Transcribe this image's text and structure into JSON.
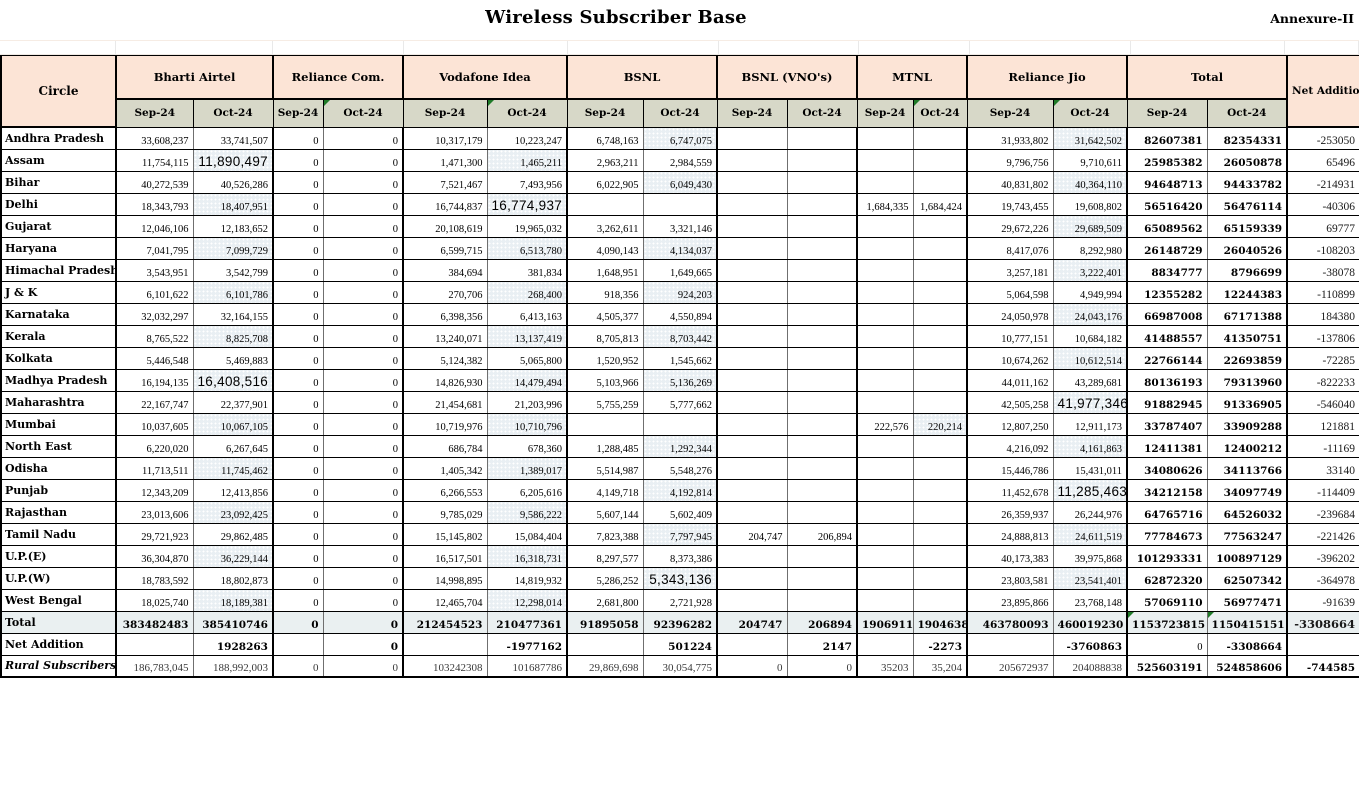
{
  "title": "Wireless Subscriber Base",
  "annexure": "Annexure-II",
  "colors": {
    "header_peach": "#FCE4D6",
    "subheader_beige": "#D7D8C8",
    "total_row_bg": "#EAF0F1",
    "oct_band_bg": "#E9EFF3",
    "comment_marker_green": "#1F7A28"
  },
  "table": {
    "corner_header": "Circle",
    "net_addition_header": "Net Addition",
    "months": [
      "Sep-24",
      "Oct-24"
    ],
    "operators": [
      "Bharti Airtel",
      "Reliance Com.",
      "Vodafone Idea",
      "BSNL",
      "BSNL (VNO's)",
      "MTNL",
      "Reliance Jio",
      "Total"
    ],
    "rows": [
      {
        "circle": "Andhra Pradesh",
        "values": [
          "33,608,237",
          "33,741,507",
          "0",
          "0",
          "10,317,179",
          "10,223,247",
          "6,748,163",
          "6,747,075",
          "",
          "",
          "",
          "",
          "31,933,802",
          "31,642,502",
          "82607381",
          "82354331",
          "-253050"
        ]
      },
      {
        "circle": "Assam",
        "values": [
          "11,754,115",
          "11,890,497",
          "0",
          "0",
          "1,471,300",
          "1,465,211",
          "2,963,211",
          "2,984,559",
          "",
          "",
          "",
          "",
          "9,796,756",
          "9,710,611",
          "25985382",
          "26050878",
          "65496"
        ]
      },
      {
        "circle": "Bihar",
        "values": [
          "40,272,539",
          "40,526,286",
          "0",
          "0",
          "7,521,467",
          "7,493,956",
          "6,022,905",
          "6,049,430",
          "",
          "",
          "",
          "",
          "40,831,802",
          "40,364,110",
          "94648713",
          "94433782",
          "-214931"
        ]
      },
      {
        "circle": "Delhi",
        "values": [
          "18,343,793",
          "18,407,951",
          "0",
          "0",
          "16,744,837",
          "16,774,937",
          "",
          "",
          "",
          "",
          "1,684,335",
          "1,684,424",
          "19,743,455",
          "19,608,802",
          "56516420",
          "56476114",
          "-40306"
        ]
      },
      {
        "circle": "Gujarat",
        "values": [
          "12,046,106",
          "12,183,652",
          "0",
          "0",
          "20,108,619",
          "19,965,032",
          "3,262,611",
          "3,321,146",
          "",
          "",
          "",
          "",
          "29,672,226",
          "29,689,509",
          "65089562",
          "65159339",
          "69777"
        ]
      },
      {
        "circle": "Haryana",
        "values": [
          "7,041,795",
          "7,099,729",
          "0",
          "0",
          "6,599,715",
          "6,513,780",
          "4,090,143",
          "4,134,037",
          "",
          "",
          "",
          "",
          "8,417,076",
          "8,292,980",
          "26148729",
          "26040526",
          "-108203"
        ]
      },
      {
        "circle": "Himachal Pradesh",
        "values": [
          "3,543,951",
          "3,542,799",
          "0",
          "0",
          "384,694",
          "381,834",
          "1,648,951",
          "1,649,665",
          "",
          "",
          "",
          "",
          "3,257,181",
          "3,222,401",
          "8834777",
          "8796699",
          "-38078"
        ]
      },
      {
        "circle": "J & K",
        "values": [
          "6,101,622",
          "6,101,786",
          "0",
          "0",
          "270,706",
          "268,400",
          "918,356",
          "924,203",
          "",
          "",
          "",
          "",
          "5,064,598",
          "4,949,994",
          "12355282",
          "12244383",
          "-110899"
        ]
      },
      {
        "circle": "Karnataka",
        "values": [
          "32,032,297",
          "32,164,155",
          "0",
          "0",
          "6,398,356",
          "6,413,163",
          "4,505,377",
          "4,550,894",
          "",
          "",
          "",
          "",
          "24,050,978",
          "24,043,176",
          "66987008",
          "67171388",
          "184380"
        ]
      },
      {
        "circle": "Kerala",
        "values": [
          "8,765,522",
          "8,825,708",
          "0",
          "0",
          "13,240,071",
          "13,137,419",
          "8,705,813",
          "8,703,442",
          "",
          "",
          "",
          "",
          "10,777,151",
          "10,684,182",
          "41488557",
          "41350751",
          "-137806"
        ]
      },
      {
        "circle": "Kolkata",
        "values": [
          "5,446,548",
          "5,469,883",
          "0",
          "0",
          "5,124,382",
          "5,065,800",
          "1,520,952",
          "1,545,662",
          "",
          "",
          "",
          "",
          "10,674,262",
          "10,612,514",
          "22766144",
          "22693859",
          "-72285"
        ]
      },
      {
        "circle": "Madhya Pradesh",
        "values": [
          "16,194,135",
          "16,408,516",
          "0",
          "0",
          "14,826,930",
          "14,479,494",
          "5,103,966",
          "5,136,269",
          "",
          "",
          "",
          "",
          "44,011,162",
          "43,289,681",
          "80136193",
          "79313960",
          "-822233"
        ]
      },
      {
        "circle": "Maharashtra",
        "values": [
          "22,167,747",
          "22,377,901",
          "0",
          "0",
          "21,454,681",
          "21,203,996",
          "5,755,259",
          "5,777,662",
          "",
          "",
          "",
          "",
          "42,505,258",
          "41,977,346",
          "91882945",
          "91336905",
          "-546040"
        ]
      },
      {
        "circle": "Mumbai",
        "values": [
          "10,037,605",
          "10,067,105",
          "0",
          "0",
          "10,719,976",
          "10,710,796",
          "",
          "",
          "",
          "",
          "222,576",
          "220,214",
          "12,807,250",
          "12,911,173",
          "33787407",
          "33909288",
          "121881"
        ]
      },
      {
        "circle": "North East",
        "values": [
          "6,220,020",
          "6,267,645",
          "0",
          "0",
          "686,784",
          "678,360",
          "1,288,485",
          "1,292,344",
          "",
          "",
          "",
          "",
          "4,216,092",
          "4,161,863",
          "12411381",
          "12400212",
          "-11169"
        ]
      },
      {
        "circle": "Odisha",
        "values": [
          "11,713,511",
          "11,745,462",
          "0",
          "0",
          "1,405,342",
          "1,389,017",
          "5,514,987",
          "5,548,276",
          "",
          "",
          "",
          "",
          "15,446,786",
          "15,431,011",
          "34080626",
          "34113766",
          "33140"
        ]
      },
      {
        "circle": "Punjab",
        "values": [
          "12,343,209",
          "12,413,856",
          "0",
          "0",
          "6,266,553",
          "6,205,616",
          "4,149,718",
          "4,192,814",
          "",
          "",
          "",
          "",
          "11,452,678",
          "11,285,463",
          "34212158",
          "34097749",
          "-114409"
        ]
      },
      {
        "circle": "Rajasthan",
        "values": [
          "23,013,606",
          "23,092,425",
          "0",
          "0",
          "9,785,029",
          "9,586,222",
          "5,607,144",
          "5,602,409",
          "",
          "",
          "",
          "",
          "26,359,937",
          "26,244,976",
          "64765716",
          "64526032",
          "-239684"
        ]
      },
      {
        "circle": "Tamil Nadu",
        "values": [
          "29,721,923",
          "29,862,485",
          "0",
          "0",
          "15,145,802",
          "15,084,404",
          "7,823,388",
          "7,797,945",
          "204,747",
          "206,894",
          "",
          "",
          "24,888,813",
          "24,611,519",
          "77784673",
          "77563247",
          "-221426"
        ]
      },
      {
        "circle": "U.P.(E)",
        "values": [
          "36,304,870",
          "36,229,144",
          "0",
          "0",
          "16,517,501",
          "16,318,731",
          "8,297,577",
          "8,373,386",
          "",
          "",
          "",
          "",
          "40,173,383",
          "39,975,868",
          "101293331",
          "100897129",
          "-396202"
        ]
      },
      {
        "circle": "U.P.(W)",
        "values": [
          "18,783,592",
          "18,802,873",
          "0",
          "0",
          "14,998,895",
          "14,819,932",
          "5,286,252",
          "5,343,136",
          "",
          "",
          "",
          "",
          "23,803,581",
          "23,541,401",
          "62872320",
          "62507342",
          "-364978"
        ]
      },
      {
        "circle": "West Bengal",
        "values": [
          "18,025,740",
          "18,189,381",
          "0",
          "0",
          "12,465,704",
          "12,298,014",
          "2,681,800",
          "2,721,928",
          "",
          "",
          "",
          "",
          "23,895,866",
          "23,768,148",
          "57069110",
          "56977471",
          "-91639"
        ]
      }
    ],
    "total_row": {
      "label": "Total",
      "values": [
        "383482483",
        "385410746",
        "0",
        "0",
        "212454523",
        "210477361",
        "91895058",
        "92396282",
        "204747",
        "206894",
        "1906911",
        "1904638",
        "463780093",
        "460019230",
        "1153723815",
        "1150415151",
        "-3308664"
      ]
    },
    "net_addition_row": {
      "label": "Net Addition",
      "values": [
        "",
        "1928263",
        "",
        "0",
        "",
        "-1977162",
        "",
        "501224",
        "",
        "2147",
        "",
        "-2273",
        "",
        "-3760863",
        "0",
        "-3308664",
        ""
      ]
    },
    "rural_row": {
      "label": "Rural Subscribers",
      "values": [
        "186,783,045",
        "188,992,003",
        "0",
        "0",
        "103242308",
        "101687786",
        "29,869,698",
        "30,054,775",
        "0",
        "0",
        "35203",
        "35,204",
        "205672937",
        "204088838",
        "525603191",
        "524858606",
        "-744585"
      ]
    }
  }
}
